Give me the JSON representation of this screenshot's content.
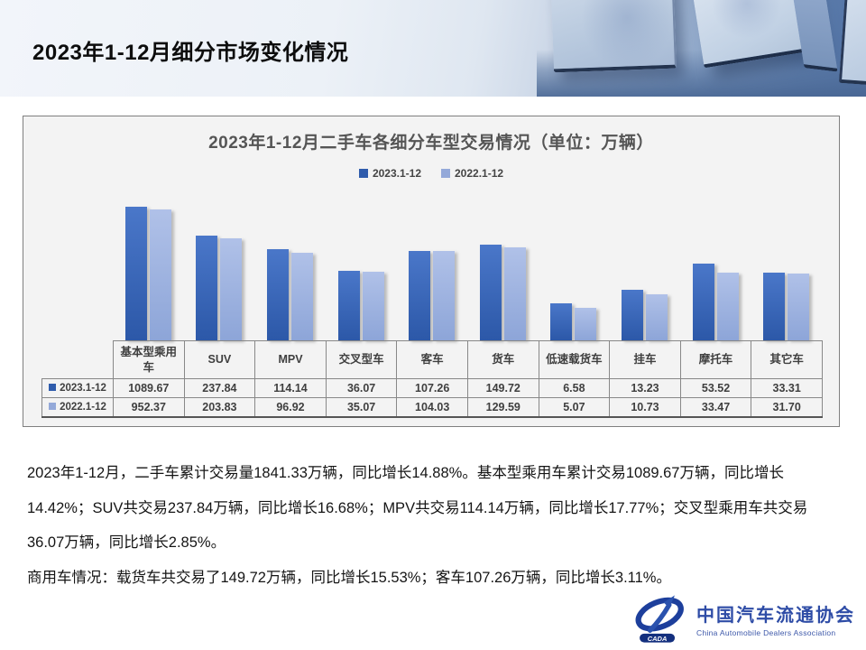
{
  "slide": {
    "title": "2023年1-12月细分市场变化情况"
  },
  "chart_data": {
    "type": "bar",
    "title": "2023年1-12月二手车各细分车型交易情况（单位：万辆）",
    "unit": "万辆",
    "scale": "log",
    "grid": false,
    "legend_position": "top-center",
    "categories": [
      "基本型乘用车",
      "SUV",
      "MPV",
      "交叉型车",
      "客车",
      "货车",
      "低速载货车",
      "挂车",
      "摩托车",
      "其它车"
    ],
    "series": [
      {
        "name": "2023.1-12",
        "color": "#2f5cac",
        "values": [
          1089.67,
          237.84,
          114.14,
          36.07,
          107.26,
          149.72,
          6.58,
          13.23,
          53.52,
          33.31
        ]
      },
      {
        "name": "2022.1-12",
        "color": "#94a9d9",
        "values": [
          952.37,
          203.83,
          96.92,
          35.07,
          104.03,
          129.59,
          5.07,
          10.73,
          33.47,
          31.7
        ]
      }
    ]
  },
  "body": {
    "p1": "2023年1-12月，二手车累计交易量1841.33万辆，同比增长14.88%。基本型乘用车累计交易1089.67万辆，同比增长14.42%；SUV共交易237.84万辆，同比增长16.68%；MPV共交易114.14万辆，同比增长17.77%；交叉型乘用车共交易36.07万辆，同比增长2.85%。",
    "p2": "商用车情况：载货车共交易了149.72万辆，同比增长15.53%；客车107.26万辆，同比增长3.11%。"
  },
  "logo": {
    "cn": "中国汽车流通协会",
    "en": "China Automobile Dealers Association",
    "emblem": "CADA"
  },
  "colors": {
    "accent_dark": "#2f5cac",
    "accent_light": "#94a9d9",
    "card_bg": "#f3f3f3",
    "banner_blue": "#4c6da0"
  }
}
